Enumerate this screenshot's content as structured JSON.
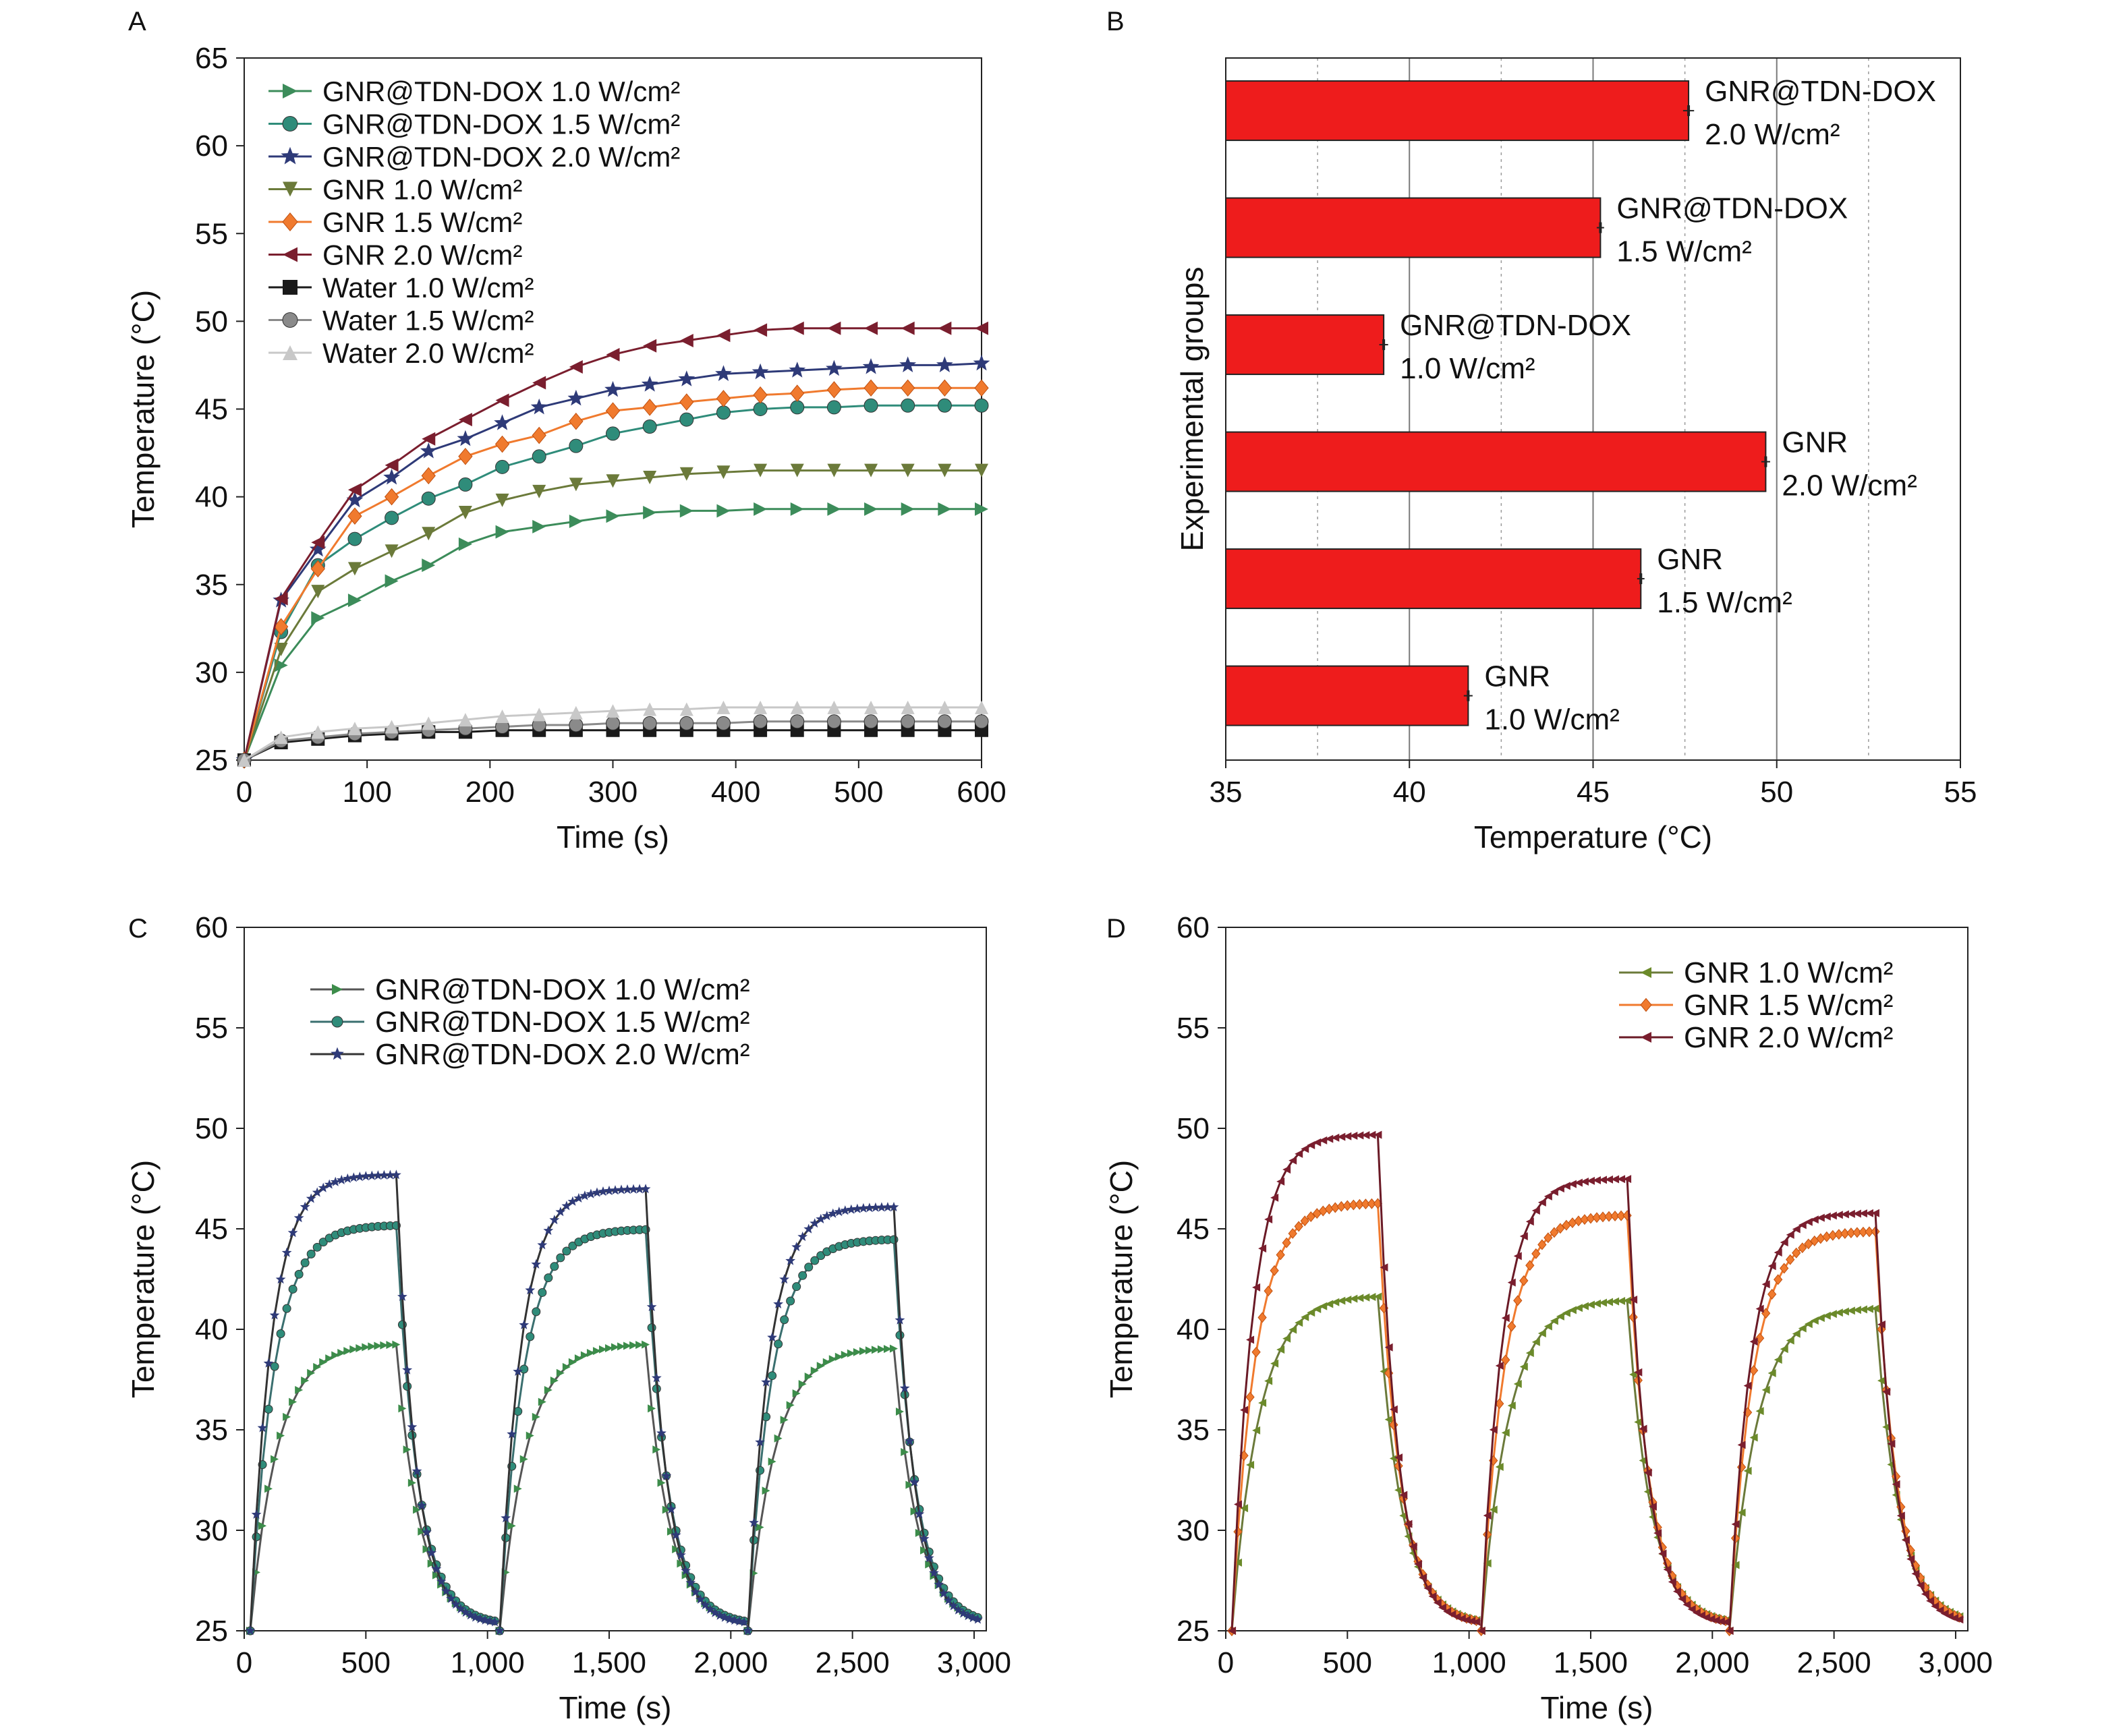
{
  "chart_data": [
    {
      "panel": "A",
      "type": "line",
      "xlabel": "Time (s)",
      "ylabel": "Temperature (°C)",
      "xlim": [
        0,
        600
      ],
      "ylim": [
        25,
        65
      ],
      "xticks": [
        0,
        100,
        200,
        300,
        400,
        500,
        600
      ],
      "yticks": [
        25,
        30,
        35,
        40,
        45,
        50,
        55,
        60,
        65
      ],
      "legend_position": "top-left",
      "x": [
        0,
        30,
        60,
        90,
        120,
        150,
        180,
        210,
        240,
        270,
        300,
        330,
        360,
        390,
        420,
        450,
        480,
        510,
        540,
        570,
        600
      ],
      "series": [
        {
          "name": "GNR@TDN-DOX 1.0 W/cm²",
          "color": "#3c8c5a",
          "marker": "triangle-right",
          "values": [
            25.0,
            30.4,
            33.1,
            34.1,
            35.2,
            36.1,
            37.3,
            38.0,
            38.3,
            38.6,
            38.9,
            39.1,
            39.2,
            39.2,
            39.3,
            39.3,
            39.3,
            39.3,
            39.3,
            39.3,
            39.3
          ]
        },
        {
          "name": "GNR@TDN-DOX 1.5 W/cm²",
          "color": "#2f8c7a",
          "marker": "circle",
          "values": [
            25.0,
            32.3,
            36.1,
            37.6,
            38.8,
            39.9,
            40.7,
            41.7,
            42.3,
            42.9,
            43.6,
            44.0,
            44.4,
            44.8,
            45.0,
            45.1,
            45.1,
            45.2,
            45.2,
            45.2,
            45.2
          ]
        },
        {
          "name": "GNR@TDN-DOX 2.0 W/cm²",
          "color": "#2e3a78",
          "marker": "star",
          "values": [
            25.0,
            34.1,
            37.0,
            39.8,
            41.1,
            42.6,
            43.3,
            44.2,
            45.1,
            45.6,
            46.1,
            46.4,
            46.7,
            47.0,
            47.1,
            47.2,
            47.3,
            47.4,
            47.5,
            47.5,
            47.6
          ]
        },
        {
          "name": "GNR 1.0 W/cm²",
          "color": "#6b7a3a",
          "marker": "triangle-down",
          "values": [
            25.0,
            31.3,
            34.6,
            35.9,
            36.9,
            37.9,
            39.1,
            39.8,
            40.3,
            40.7,
            40.9,
            41.1,
            41.3,
            41.4,
            41.5,
            41.5,
            41.5,
            41.5,
            41.5,
            41.5,
            41.5
          ]
        },
        {
          "name": "GNR 1.5 W/cm²",
          "color": "#f07a2e",
          "marker": "diamond",
          "values": [
            25.0,
            32.6,
            35.9,
            38.9,
            40.0,
            41.2,
            42.3,
            43.0,
            43.5,
            44.3,
            44.9,
            45.1,
            45.4,
            45.6,
            45.8,
            45.9,
            46.1,
            46.2,
            46.2,
            46.2,
            46.2
          ]
        },
        {
          "name": "GNR 2.0 W/cm²",
          "color": "#7a1e2e",
          "marker": "triangle-left",
          "values": [
            25.0,
            34.2,
            37.4,
            40.4,
            41.8,
            43.3,
            44.4,
            45.5,
            46.5,
            47.4,
            48.1,
            48.6,
            48.9,
            49.2,
            49.5,
            49.6,
            49.6,
            49.6,
            49.6,
            49.6,
            49.6
          ]
        },
        {
          "name": "Water 1.0 W/cm²",
          "color": "#1a1a1a",
          "marker": "square",
          "values": [
            25.0,
            26.0,
            26.2,
            26.4,
            26.5,
            26.6,
            26.6,
            26.7,
            26.7,
            26.7,
            26.7,
            26.7,
            26.7,
            26.7,
            26.7,
            26.7,
            26.7,
            26.7,
            26.7,
            26.7,
            26.7
          ]
        },
        {
          "name": "Water 1.5 W/cm²",
          "color": "#8a8a8a",
          "marker": "circle",
          "values": [
            25.0,
            26.1,
            26.3,
            26.5,
            26.6,
            26.7,
            26.8,
            26.9,
            27.0,
            27.0,
            27.1,
            27.1,
            27.1,
            27.1,
            27.2,
            27.2,
            27.2,
            27.2,
            27.2,
            27.2,
            27.2
          ]
        },
        {
          "name": "Water 2.0 W/cm²",
          "color": "#c8c8c8",
          "marker": "triangle-up",
          "values": [
            25.0,
            26.3,
            26.6,
            26.8,
            26.9,
            27.1,
            27.3,
            27.5,
            27.6,
            27.7,
            27.8,
            27.9,
            27.9,
            28.0,
            28.0,
            28.0,
            28.0,
            28.0,
            28.0,
            28.0,
            28.0
          ]
        }
      ]
    },
    {
      "panel": "B",
      "type": "bar",
      "orientation": "horizontal",
      "xlabel": "Temperature (°C)",
      "ylabel": "Experimental groups",
      "xlim": [
        35,
        55
      ],
      "xticks": [
        35,
        40,
        45,
        50,
        55
      ],
      "bar_color": "#ee1c1c",
      "categories": [
        {
          "line1": "GNR@TDN-DOX",
          "line2": "2.0 W/cm²",
          "value": 47.6,
          "error": 0.15
        },
        {
          "line1": "GNR@TDN-DOX",
          "line2": "1.5 W/cm²",
          "value": 45.2,
          "error": 0.1
        },
        {
          "line1": "GNR@TDN-DOX",
          "line2": "1.0 W/cm²",
          "value": 39.3,
          "error": 0.12
        },
        {
          "line1": "GNR",
          "line2": "2.0 W/cm²",
          "value": 49.7,
          "error": 0.12
        },
        {
          "line1": "GNR",
          "line2": "1.5 W/cm²",
          "value": 46.3,
          "error": 0.1
        },
        {
          "line1": "GNR",
          "line2": "1.0 W/cm²",
          "value": 41.6,
          "error": 0.12
        }
      ]
    },
    {
      "panel": "C",
      "type": "line",
      "xlabel": "Time (s)",
      "ylabel": "Temperature (°C)",
      "xlim": [
        0,
        3050
      ],
      "ylim": [
        25,
        60
      ],
      "xticks": [
        0,
        500,
        1000,
        1500,
        2000,
        2500,
        3000
      ],
      "xtick_labels": [
        "0",
        "500",
        "1,000",
        "1,500",
        "2,000",
        "2,500",
        "3,000"
      ],
      "yticks": [
        25,
        30,
        35,
        40,
        45,
        50,
        55,
        60
      ],
      "legend_position": "top-left",
      "cycles": [
        {
          "on_start": 25,
          "off_start": 625,
          "off_end": 1040
        },
        {
          "on_start": 1050,
          "off_start": 1650,
          "off_end": 2060
        },
        {
          "on_start": 2070,
          "off_start": 2670,
          "off_end": 3020
        }
      ],
      "series": [
        {
          "name": "GNR@TDN-DOX 1.0 W/cm²",
          "color": "#3c8c4a",
          "line_color": "#555555",
          "marker": "triangle-right",
          "plateaus": [
            39.3,
            39.3,
            39.1
          ]
        },
        {
          "name": "GNR@TDN-DOX 1.5 W/cm²",
          "color": "#2f8c7a",
          "line_color": "#3a6f6f",
          "marker": "circle",
          "plateaus": [
            45.2,
            45.0,
            44.5
          ]
        },
        {
          "name": "GNR@TDN-DOX 2.0 W/cm²",
          "color": "#2e3a78",
          "line_color": "#333333",
          "marker": "star",
          "plateaus": [
            47.7,
            47.0,
            46.1
          ]
        }
      ]
    },
    {
      "panel": "D",
      "type": "line",
      "xlabel": "Time (s)",
      "ylabel": "Temperature (°C)",
      "xlim": [
        0,
        3050
      ],
      "ylim": [
        25,
        60
      ],
      "xticks": [
        0,
        500,
        1000,
        1500,
        2000,
        2500,
        3000
      ],
      "xtick_labels": [
        "0",
        "500",
        "1,000",
        "1,500",
        "2,000",
        "2,500",
        "3,000"
      ],
      "yticks": [
        25,
        30,
        35,
        40,
        45,
        50,
        55,
        60
      ],
      "legend_position": "top-right",
      "cycles": [
        {
          "on_start": 25,
          "off_start": 625,
          "off_end": 1040
        },
        {
          "on_start": 1050,
          "off_start": 1650,
          "off_end": 2060
        },
        {
          "on_start": 2070,
          "off_start": 2670,
          "off_end": 3020
        }
      ],
      "series": [
        {
          "name": "GNR 1.0 W/cm²",
          "color": "#6b8a2a",
          "line_color": "#6b7a3a",
          "marker": "triangle-left",
          "plateaus": [
            41.7,
            41.5,
            41.1
          ]
        },
        {
          "name": "GNR 1.5 W/cm²",
          "color": "#f07a2e",
          "line_color": "#f07a2e",
          "marker": "diamond",
          "plateaus": [
            46.3,
            45.7,
            44.9
          ]
        },
        {
          "name": "GNR 2.0 W/cm²",
          "color": "#7a1e2e",
          "line_color": "#6a1a26",
          "marker": "triangle-left",
          "plateaus": [
            49.7,
            47.5,
            45.8
          ]
        }
      ]
    }
  ],
  "panel_labels": {
    "a": "A",
    "b": "B",
    "c": "C",
    "d": "D"
  }
}
